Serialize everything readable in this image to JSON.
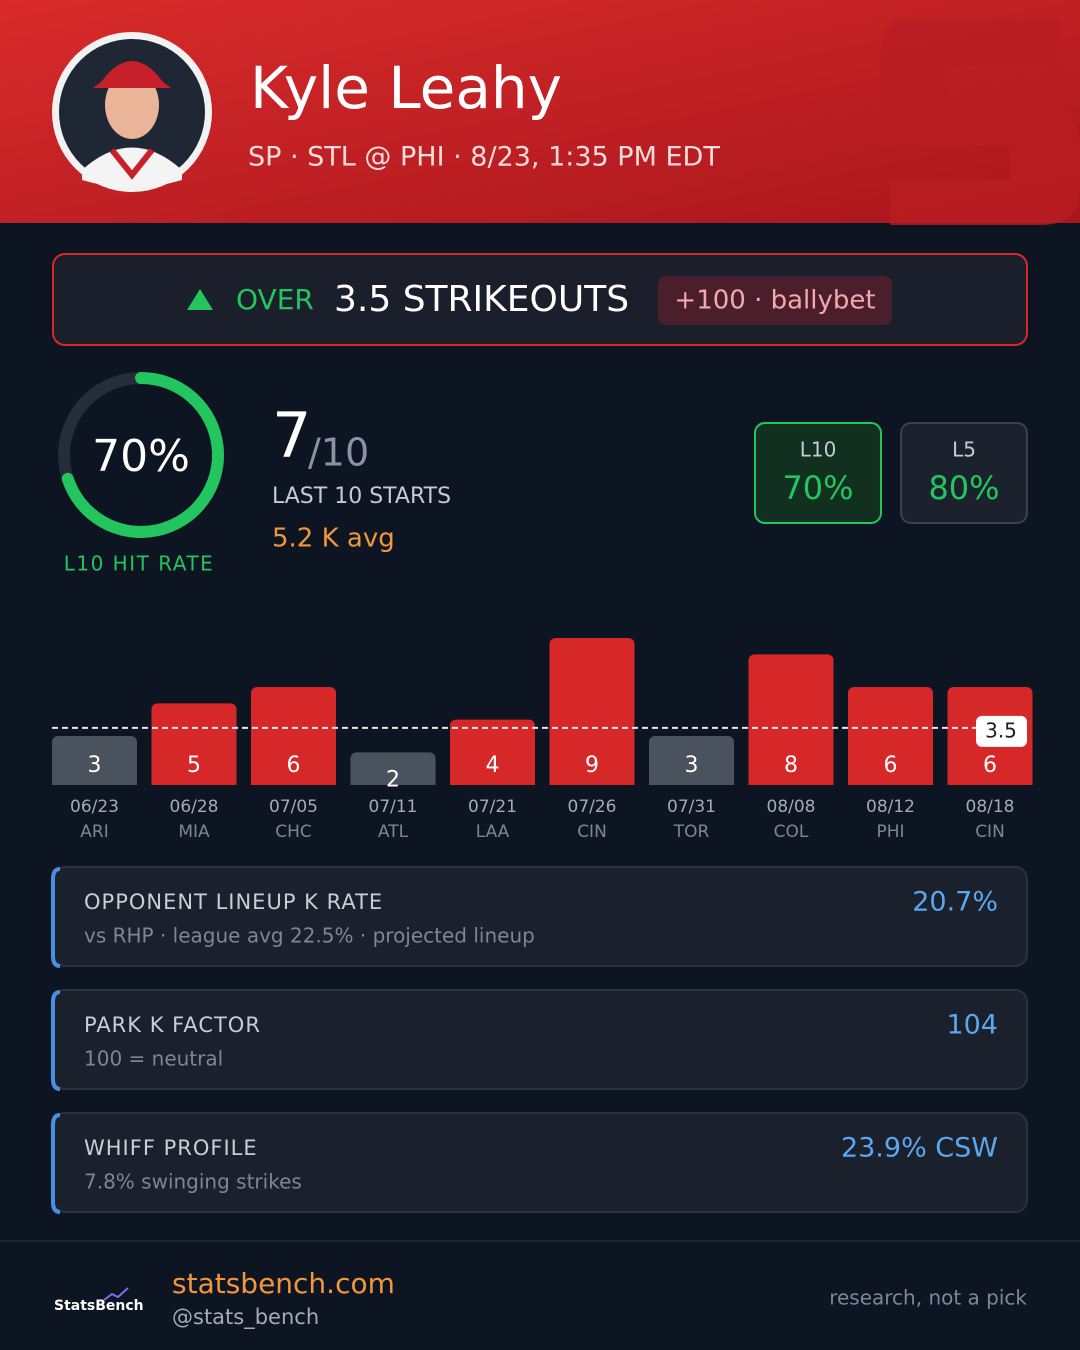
{
  "header": {
    "name": "Kyle Leahy",
    "subtitle": "SP · STL @ PHI · 8/23, 1:35 PM EDT"
  },
  "bet": {
    "direction": "OVER",
    "prop": "3.5 STRIKEOUTS",
    "odds": "+100 · ballybet"
  },
  "hit_rate": {
    "value": 70,
    "label": "70%",
    "caption": "L10 HIT RATE",
    "color": "#22c55e"
  },
  "record": {
    "hits": 7,
    "total_label": "/10",
    "caption": "LAST 10 STARTS",
    "average": "5.2 K avg"
  },
  "pills": [
    {
      "label": "L10",
      "value": "70%"
    },
    {
      "label": "L5",
      "value": "80%"
    }
  ],
  "chart": {
    "type": "bar",
    "categories": [
      "06/23",
      "06/28",
      "07/05",
      "07/11",
      "07/21",
      "07/26",
      "07/31",
      "08/08",
      "08/12",
      "08/18"
    ],
    "opponents": [
      "ARI",
      "MIA",
      "CHC",
      "ATL",
      "LAA",
      "CIN",
      "TOR",
      "COL",
      "PHI",
      "CIN"
    ],
    "values": [
      3,
      5,
      6,
      2,
      4,
      9,
      3,
      8,
      6,
      6
    ],
    "line": 3.5,
    "over_color": "#d62828",
    "under_color": "#4a525e"
  },
  "cards": [
    {
      "title": "OPPONENT LINEUP K RATE",
      "detail": "vs RHP · league avg 22.5% · projected lineup",
      "value": "20.7%"
    },
    {
      "title": "PARK K FACTOR",
      "detail": "100 = neutral",
      "value": "104"
    },
    {
      "title": "WHIFF PROFILE",
      "detail": "7.8% swinging strikes",
      "value": "23.9% CSW"
    }
  ],
  "footer": {
    "logo": "StatsBench",
    "site": "statsbench.com",
    "handle": "@stats_bench",
    "disclaimer": "research, not a pick"
  }
}
